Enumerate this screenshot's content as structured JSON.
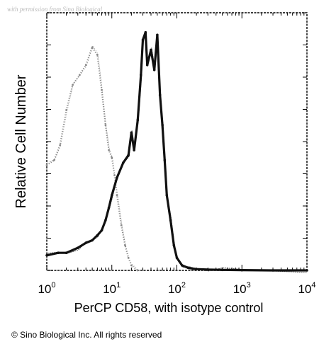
{
  "watermark": "with permission from Sino Biological",
  "copyright": "© Sino Biological Inc. All rights reserved",
  "chart_data": {
    "type": "area",
    "xlabel": "PerCP CD58, with isotype control",
    "ylabel": "Relative Cell Number",
    "xscale": "log",
    "xlim": [
      1,
      10000
    ],
    "ylim": [
      0,
      1
    ],
    "yticks_labeled": false,
    "x_tick_labels": [
      {
        "value": 1,
        "base": "10",
        "exp": "0"
      },
      {
        "value": 10,
        "base": "10",
        "exp": "1"
      },
      {
        "value": 100,
        "base": "10",
        "exp": "2"
      },
      {
        "value": 1000,
        "base": "10",
        "exp": "3"
      },
      {
        "value": 10000,
        "base": "10",
        "exp": "4"
      }
    ],
    "series": [
      {
        "role": "isotype control",
        "style": "dotted-gray",
        "color": "#8a8a8a",
        "x": [
          1.0,
          1.3,
          1.6,
          2.0,
          2.5,
          3.2,
          4.0,
          5.0,
          6.0,
          7.0,
          8.0,
          9.0,
          10.0,
          11.0,
          12.0,
          14.0,
          16.0,
          18.0,
          20.0,
          25.0
        ],
        "y": [
          0.42,
          0.44,
          0.5,
          0.64,
          0.74,
          0.78,
          0.82,
          0.89,
          0.86,
          0.72,
          0.58,
          0.48,
          0.45,
          0.38,
          0.3,
          0.18,
          0.1,
          0.05,
          0.02,
          0.0
        ]
      },
      {
        "role": "PerCP CD58",
        "style": "solid-black",
        "color": "#111111",
        "x": [
          1.0,
          1.5,
          2.0,
          3.0,
          4.0,
          5.0,
          6.0,
          7.0,
          8.0,
          9.0,
          10.0,
          12.0,
          15.0,
          18.0,
          20.0,
          22.0,
          25.0,
          28.0,
          30.0,
          33.0,
          35.0,
          40.0,
          45.0,
          50.0,
          55.0,
          60.0,
          65.0,
          70.0,
          80.0,
          90.0,
          100.0,
          120.0,
          150.0,
          200.0,
          300.0,
          500.0,
          1000.0,
          3000.0,
          10000.0
        ],
        "y": [
          0.06,
          0.07,
          0.07,
          0.09,
          0.11,
          0.12,
          0.14,
          0.16,
          0.2,
          0.25,
          0.3,
          0.37,
          0.43,
          0.46,
          0.55,
          0.48,
          0.6,
          0.78,
          0.92,
          0.95,
          0.82,
          0.88,
          0.8,
          0.94,
          0.7,
          0.58,
          0.44,
          0.3,
          0.2,
          0.1,
          0.05,
          0.02,
          0.01,
          0.005,
          0.003,
          0.002,
          0.001,
          0.0,
          0.0
        ]
      }
    ]
  }
}
